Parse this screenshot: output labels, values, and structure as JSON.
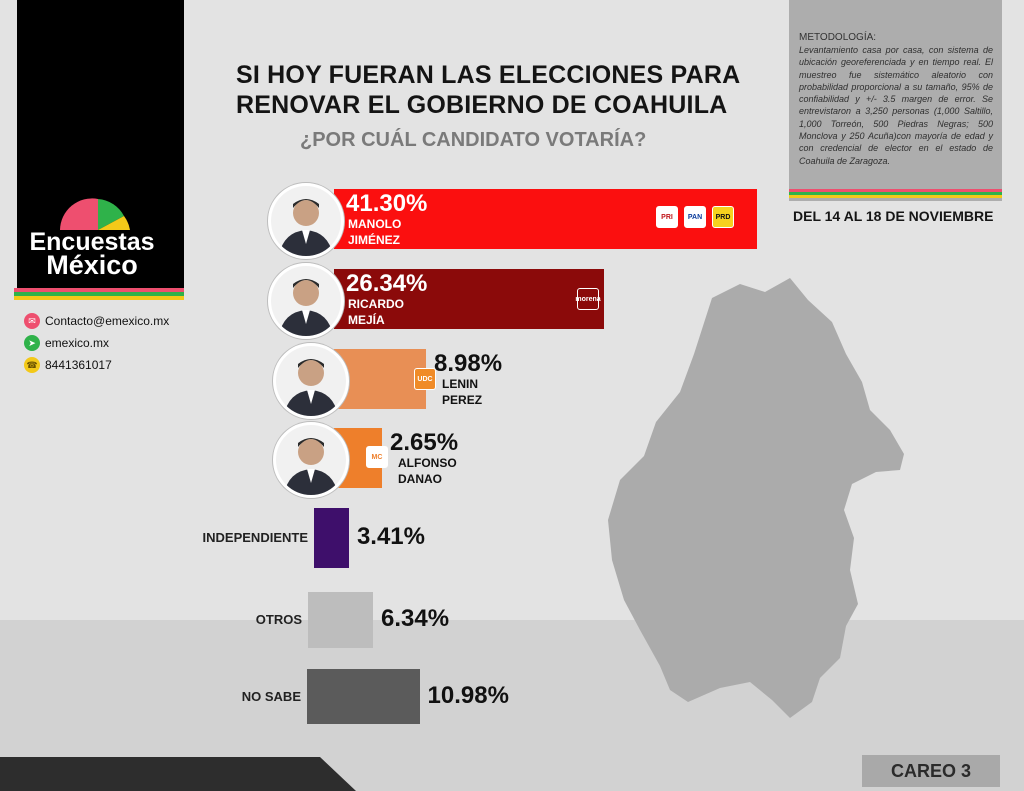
{
  "title_line1": "SI HOY FUERAN LAS ELECCIONES PARA",
  "title_line2": "RENOVAR EL GOBIERNO DE COAHUILA",
  "subtitle": "¿POR CUÁL CANDIDATO VOTARÍA?",
  "brand": {
    "line1": "Encuestas",
    "line2": "México"
  },
  "contacts": [
    {
      "icon": "mail-icon",
      "text": "Contacto@emexico.mx"
    },
    {
      "icon": "cursor-icon",
      "text": "emexico.mx"
    },
    {
      "icon": "phone-icon",
      "text": "8441361017"
    }
  ],
  "methodology": {
    "heading": "METODOLOGÍA:",
    "text": "Levantamiento casa por casa, con sistema de ubicación georeferenciada y en tiempo real. El muestreo fue sistemático aleatorio con probabilidad proporcional a su tamaño, 95% de confiabilidad y +/- 3.5 margen de error. Se entrevistaron a 3,250 personas (1,000 Saltillo, 1,000 Torreón, 500 Piedras Negras; 500 Monclova y 250 Acuña)con mayoría de edad y con credencial de elector en el estado de Coahuila de Zaragoza."
  },
  "dates": "DEL 14 AL 18 DE NOVIEMBRE",
  "footer_tag": "CAREO 3",
  "parties": {
    "pri": "PRI",
    "pan": "PAN",
    "prd": "PRD",
    "morena": "morena",
    "udc": "UDC",
    "mc": "MC"
  },
  "colors": {
    "jimenez": "#fb0f0f",
    "mejia": "#8b0a0a",
    "perez": "#e88f55",
    "danao": "#ee7f2b",
    "independiente": "#3e0f6b",
    "otros": "#bdbdbd",
    "nosabe": "#5b5b5b",
    "pink": "#ee4f6f",
    "green": "#2fb24a",
    "yellow": "#f3c919"
  },
  "chart_data": {
    "type": "bar",
    "orientation": "horizontal",
    "title": "SI HOY FUERAN LAS ELECCIONES PARA RENOVAR EL GOBIERNO DE COAHUILA",
    "subtitle": "¿POR CUÁL CANDIDATO VOTARÍA?",
    "unit": "%",
    "bars": [
      {
        "key": "jimenez",
        "label": "41.30%",
        "value": 41.3,
        "name_line1": "MANOLO",
        "name_line2": "JIMÉNEZ"
      },
      {
        "key": "mejia",
        "label": "26.34%",
        "value": 26.34,
        "name_line1": "RICARDO",
        "name_line2": "MEJÍA"
      },
      {
        "key": "perez",
        "label": "8.98%",
        "value": 8.98,
        "name_line1": "LENIN",
        "name_line2": "PEREZ"
      },
      {
        "key": "danao",
        "label": "2.65%",
        "value": 2.65,
        "name_line1": "ALFONSO",
        "name_line2": "DANAO"
      },
      {
        "key": "independiente",
        "label": "3.41%",
        "value": 3.41,
        "category": "INDEPENDIENTE"
      },
      {
        "key": "otros",
        "label": "6.34%",
        "value": 6.34,
        "category": "OTROS"
      },
      {
        "key": "nosabe",
        "label": "10.98%",
        "value": 10.98,
        "category": "NO SABE"
      }
    ]
  }
}
